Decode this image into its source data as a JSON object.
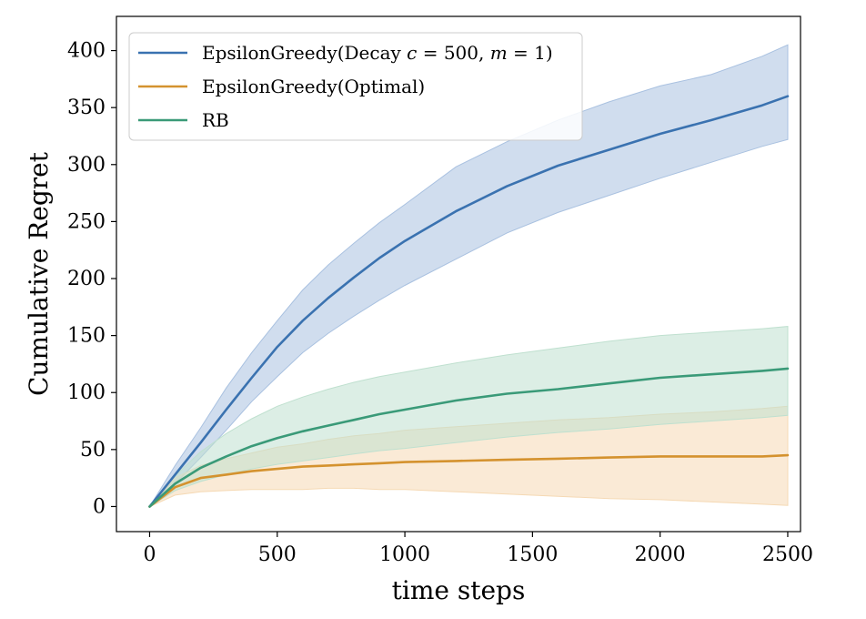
{
  "chart_data": {
    "type": "line",
    "title": "",
    "xlabel": "time steps",
    "ylabel": "Cumulative Regret",
    "xlim": [
      -130,
      2550
    ],
    "ylim": [
      -22,
      430
    ],
    "xticks": [
      0,
      500,
      1000,
      1500,
      2000,
      2500
    ],
    "yticks": [
      0,
      50,
      100,
      150,
      200,
      250,
      300,
      350,
      400
    ],
    "grid": false,
    "legend_position": "top-left",
    "series": [
      {
        "name": "EpsilonGreedy(Decay c = 500, m = 1)",
        "legend_parts": [
          {
            "text": "EpsilonGreedy(Decay ",
            "italic": false
          },
          {
            "text": "c",
            "italic": true
          },
          {
            "text": " = 500, ",
            "italic": false
          },
          {
            "text": "m",
            "italic": true
          },
          {
            "text": " = 1)",
            "italic": false
          }
        ],
        "color": "#3a72b0",
        "band_color": "#a9c1e0",
        "x": [
          0,
          100,
          200,
          300,
          400,
          500,
          600,
          700,
          800,
          900,
          1000,
          1200,
          1400,
          1600,
          1800,
          2000,
          2200,
          2400,
          2500
        ],
        "mean": [
          0,
          28,
          56,
          85,
          113,
          140,
          163,
          183,
          201,
          218,
          233,
          259,
          281,
          299,
          313,
          327,
          339,
          352,
          360
        ],
        "lower": [
          0,
          20,
          43,
          67,
          92,
          114,
          135,
          152,
          167,
          181,
          194,
          217,
          240,
          258,
          273,
          288,
          302,
          316,
          322
        ],
        "upper": [
          0,
          36,
          69,
          104,
          135,
          163,
          190,
          212,
          231,
          249,
          265,
          298,
          320,
          339,
          355,
          369,
          379,
          395,
          405
        ]
      },
      {
        "name": "EpsilonGreedy(Optimal)",
        "legend_parts": [
          {
            "text": "EpsilonGreedy(Optimal)",
            "italic": false
          }
        ],
        "color": "#d4922e",
        "band_color": "#f5d9b4",
        "x": [
          0,
          100,
          200,
          300,
          400,
          500,
          600,
          700,
          800,
          900,
          1000,
          1200,
          1400,
          1600,
          1800,
          2000,
          2200,
          2400,
          2500
        ],
        "mean": [
          0,
          17,
          25,
          28,
          31,
          33,
          35,
          36,
          37,
          38,
          39,
          40,
          41,
          42,
          43,
          44,
          44,
          44,
          45
        ],
        "lower": [
          0,
          10,
          13,
          14,
          15,
          15,
          15,
          16,
          16,
          15,
          15,
          13,
          11,
          9,
          7,
          6,
          4,
          2,
          1
        ],
        "upper": [
          0,
          25,
          36,
          42,
          47,
          52,
          55,
          59,
          62,
          64,
          67,
          70,
          73,
          76,
          78,
          81,
          83,
          86,
          88
        ]
      },
      {
        "name": "RB",
        "legend_parts": [
          {
            "text": "RB",
            "italic": false
          }
        ],
        "color": "#3a9a78",
        "band_color": "#bfe0cf",
        "x": [
          0,
          100,
          200,
          300,
          400,
          500,
          600,
          700,
          800,
          900,
          1000,
          1200,
          1400,
          1600,
          1800,
          2000,
          2200,
          2400,
          2500
        ],
        "mean": [
          0,
          20,
          34,
          44,
          53,
          60,
          66,
          71,
          76,
          81,
          85,
          93,
          99,
          103,
          108,
          113,
          116,
          119,
          121
        ],
        "lower": [
          0,
          14,
          22,
          28,
          33,
          37,
          40,
          43,
          46,
          49,
          51,
          56,
          61,
          65,
          68,
          72,
          75,
          78,
          80
        ],
        "upper": [
          0,
          27,
          48,
          64,
          77,
          88,
          96,
          103,
          109,
          114,
          118,
          126,
          133,
          139,
          145,
          150,
          153,
          156,
          158
        ]
      }
    ]
  }
}
